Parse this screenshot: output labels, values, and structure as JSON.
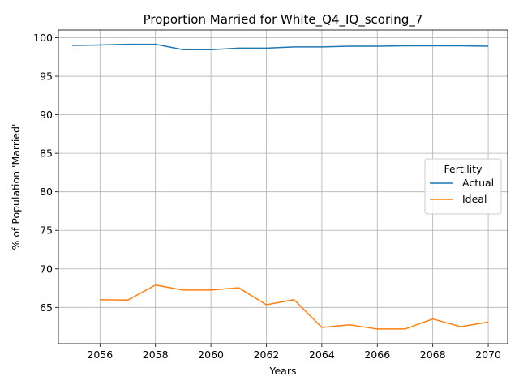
{
  "chart_data": {
    "type": "line",
    "title": "Proportion Married for White_Q4_IQ_scoring_7",
    "xlabel": "Years",
    "ylabel": "% of Population 'Married'",
    "xlim": [
      2054.5,
      2070.7
    ],
    "ylim": [
      60.3,
      101.0
    ],
    "xticks": [
      2056,
      2058,
      2060,
      2062,
      2064,
      2066,
      2068,
      2070
    ],
    "yticks": [
      65,
      70,
      75,
      80,
      85,
      90,
      95,
      100
    ],
    "grid": true,
    "legend": {
      "title": "Fertility",
      "position": "center-right"
    },
    "series": [
      {
        "name": "Actual",
        "color": "#1f77b4",
        "x": [
          2055,
          2056,
          2057,
          2058,
          2059,
          2060,
          2061,
          2062,
          2063,
          2064,
          2065,
          2066,
          2067,
          2068,
          2069,
          2070
        ],
        "values": [
          99.0,
          99.05,
          99.15,
          99.15,
          98.45,
          98.45,
          98.65,
          98.65,
          98.8,
          98.8,
          98.9,
          98.9,
          98.95,
          98.95,
          98.95,
          98.9
        ]
      },
      {
        "name": "Ideal",
        "color": "#ff7f0e",
        "x": [
          2056,
          2057,
          2058,
          2059,
          2060,
          2061,
          2062,
          2063,
          2064,
          2065,
          2066,
          2067,
          2068,
          2069,
          2070
        ],
        "values": [
          66.0,
          65.95,
          67.9,
          67.25,
          67.25,
          67.55,
          65.35,
          66.0,
          62.4,
          62.75,
          62.2,
          62.2,
          63.5,
          62.5,
          63.1
        ]
      }
    ]
  }
}
